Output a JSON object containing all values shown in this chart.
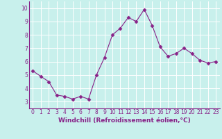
{
  "x": [
    0,
    1,
    2,
    3,
    4,
    5,
    6,
    7,
    8,
    9,
    10,
    11,
    12,
    13,
    14,
    15,
    16,
    17,
    18,
    19,
    20,
    21,
    22,
    23
  ],
  "y": [
    5.3,
    4.9,
    4.5,
    3.5,
    3.4,
    3.2,
    3.4,
    3.2,
    5.0,
    6.3,
    8.0,
    8.5,
    9.3,
    9.0,
    9.9,
    8.7,
    7.1,
    6.4,
    6.6,
    7.0,
    6.6,
    6.1,
    5.9,
    6.0
  ],
  "line_color": "#882288",
  "marker": "D",
  "marker_size": 2.5,
  "bg_color": "#c8f0ec",
  "grid_color": "#ffffff",
  "xlabel": "Windchill (Refroidissement éolien,°C)",
  "xlabel_color": "#882288",
  "tick_color": "#882288",
  "ylim": [
    2.5,
    10.5
  ],
  "xlim": [
    -0.5,
    23.5
  ],
  "yticks": [
    3,
    4,
    5,
    6,
    7,
    8,
    9,
    10
  ],
  "xticks": [
    0,
    1,
    2,
    3,
    4,
    5,
    6,
    7,
    8,
    9,
    10,
    11,
    12,
    13,
    14,
    15,
    16,
    17,
    18,
    19,
    20,
    21,
    22,
    23
  ],
  "tick_fontsize": 5.5,
  "xlabel_fontsize": 6.5
}
